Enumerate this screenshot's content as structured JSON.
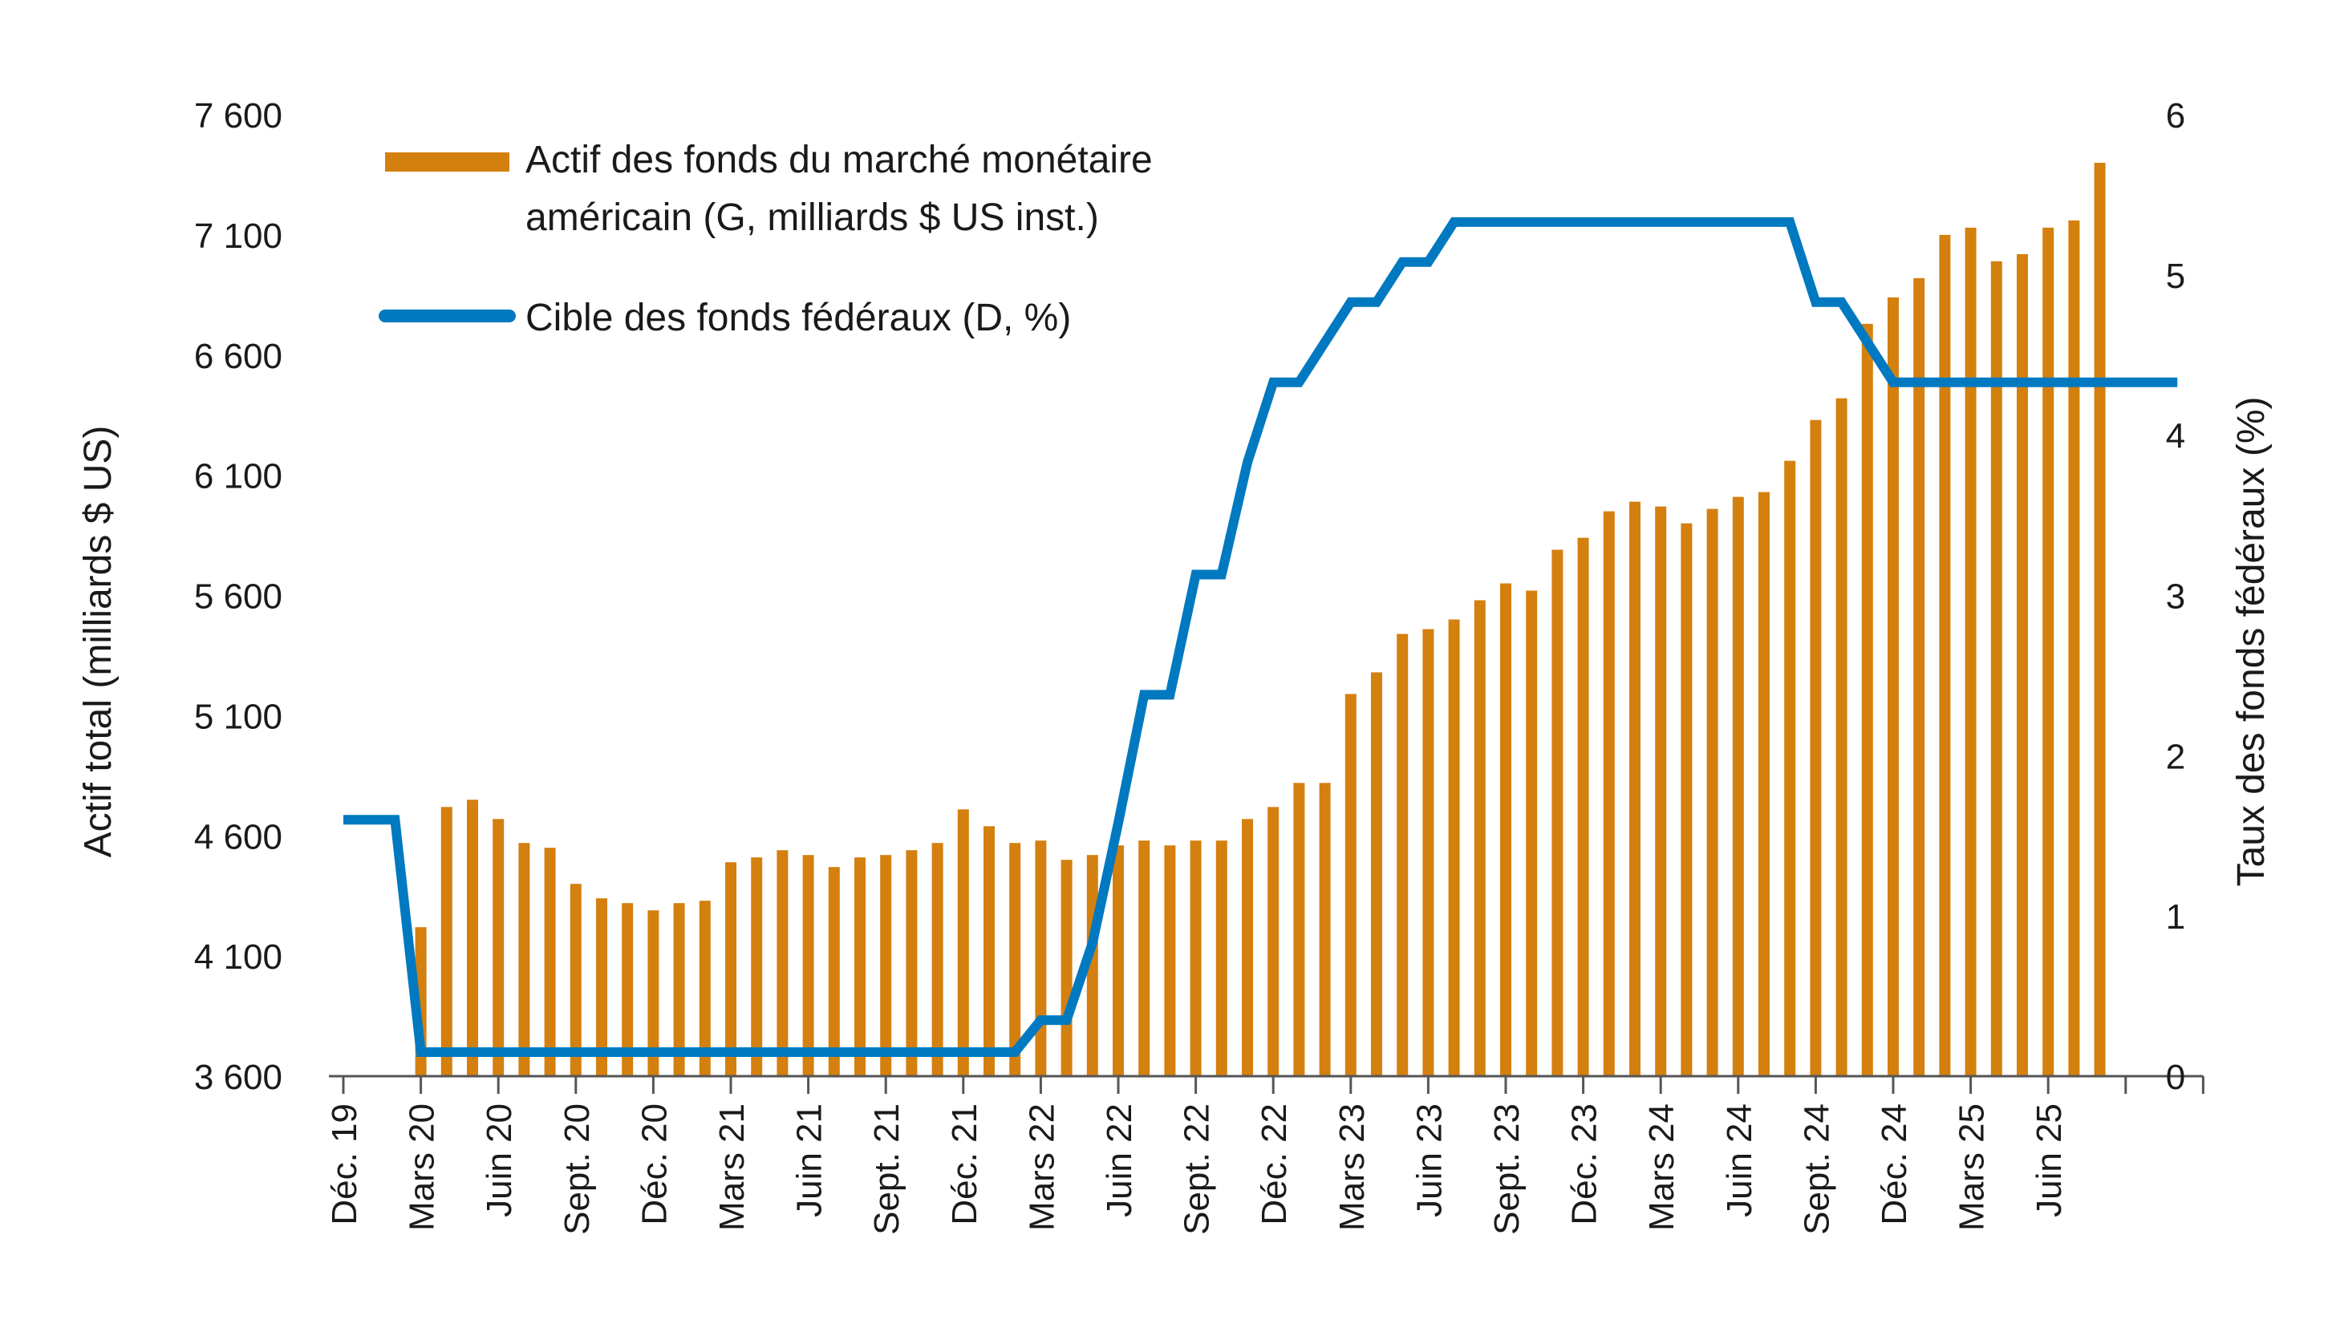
{
  "colors": {
    "bars": "#D4800F",
    "line": "#0079C1",
    "axis": "#555555",
    "text": "#1a1a1a"
  },
  "chart_data": {
    "type": "bar",
    "legend": {
      "placement": "top-left",
      "bar_label_line1": "Actif des fonds du marché monétaire",
      "bar_label_line2": "américain (G, milliards $ US inst.)",
      "line_label": "Cible des fonds fédéraux (D, %)"
    },
    "y_left": {
      "label": "Actif total (milliards $ US)",
      "ticks": [
        "3 600",
        "4 100",
        "4 600",
        "5 100",
        "5 600",
        "6 100",
        "6 600",
        "7 100",
        "7 600"
      ],
      "range": [
        3600,
        7600
      ]
    },
    "y_right": {
      "label": "Taux des fonds fédéraux (%)",
      "ticks": [
        "0",
        "1",
        "2",
        "3",
        "4",
        "5",
        "6"
      ],
      "range": [
        0,
        6
      ]
    },
    "x_ticks": [
      "Déc. 19",
      "Mars 20",
      "Juin 20",
      "Sept. 20",
      "Déc. 20",
      "Mars 21",
      "Juin 21",
      "Sept. 21",
      "Déc. 21",
      "Mars 22",
      "Juin 22",
      "Sept. 22",
      "Déc. 22",
      "Mars 23",
      "Juin 23",
      "Sept. 23",
      "Déc. 23",
      "Mars 24",
      "Juin 24",
      "Sept. 24",
      "Déc. 24",
      "Mars 25",
      "Juin 25"
    ],
    "grid": false,
    "series": [
      {
        "name": "Actif des fonds du marché monétaire américain (G, milliards $ US inst.)",
        "kind": "bar",
        "axis": "left",
        "start_month": "2020-03",
        "values": [
          4220,
          4720,
          4750,
          4670,
          4570,
          4550,
          4400,
          4340,
          4320,
          4290,
          4320,
          4330,
          4490,
          4510,
          4540,
          4520,
          4470,
          4510,
          4520,
          4540,
          4570,
          4710,
          4640,
          4570,
          4580,
          4500,
          4520,
          4560,
          4580,
          4560,
          4580,
          4580,
          4670,
          4720,
          4820,
          4820,
          5190,
          5280,
          5440,
          5460,
          5500,
          5580,
          5650,
          5620,
          5790,
          5840,
          5950,
          5990,
          5970,
          5900,
          5960,
          6010,
          6030,
          6160,
          6330,
          6420,
          6730,
          6840,
          6920,
          7100,
          7130,
          6990,
          7020,
          7130,
          7160,
          7400
        ]
      },
      {
        "name": "Cible des fonds fédéraux (D, %)",
        "kind": "line",
        "axis": "right",
        "points": [
          [
            "2019-12",
            1.6
          ],
          [
            "2020-02",
            1.6
          ],
          [
            "2020-03",
            0.15
          ],
          [
            "2022-02",
            0.15
          ],
          [
            "2022-03",
            0.35
          ],
          [
            "2022-04",
            0.35
          ],
          [
            "2022-05",
            0.83
          ],
          [
            "2022-06",
            1.58
          ],
          [
            "2022-07",
            2.38
          ],
          [
            "2022-08",
            2.38
          ],
          [
            "2022-09",
            3.13
          ],
          [
            "2022-10",
            3.13
          ],
          [
            "2022-11",
            3.83
          ],
          [
            "2022-12",
            4.33
          ],
          [
            "2023-01",
            4.33
          ],
          [
            "2023-02",
            4.58
          ],
          [
            "2023-03",
            4.83
          ],
          [
            "2023-04",
            4.83
          ],
          [
            "2023-05",
            5.08
          ],
          [
            "2023-06",
            5.08
          ],
          [
            "2023-07",
            5.33
          ],
          [
            "2024-08",
            5.33
          ],
          [
            "2024-09",
            4.83
          ],
          [
            "2024-10",
            4.83
          ],
          [
            "2024-11",
            4.58
          ],
          [
            "2024-12",
            4.33
          ],
          [
            "2025-11",
            4.33
          ]
        ]
      }
    ]
  }
}
